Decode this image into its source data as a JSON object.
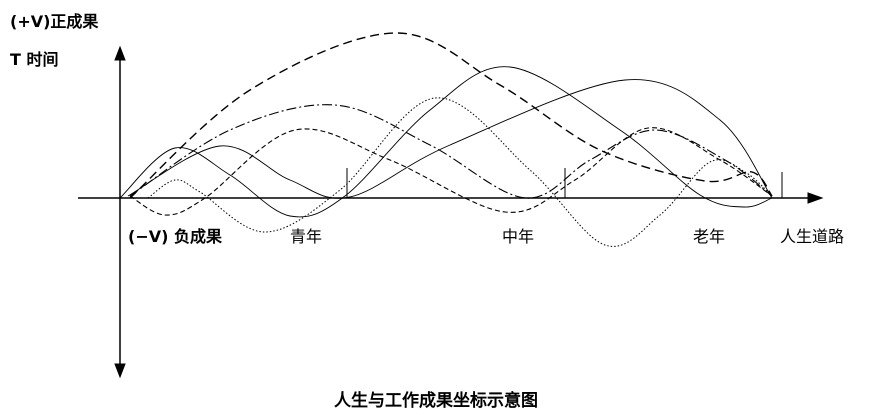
{
  "labels": {
    "positive": "(+V)正成果",
    "time": "T 时间",
    "negative": "(−V) 负成果",
    "youth": "青年",
    "middle_age": "中年",
    "old_age": "老年",
    "life_road": "人生道路"
  },
  "title": "人生与工作成果坐标示意图",
  "colors": {
    "line": "#000000",
    "background": "#ffffff"
  }
}
